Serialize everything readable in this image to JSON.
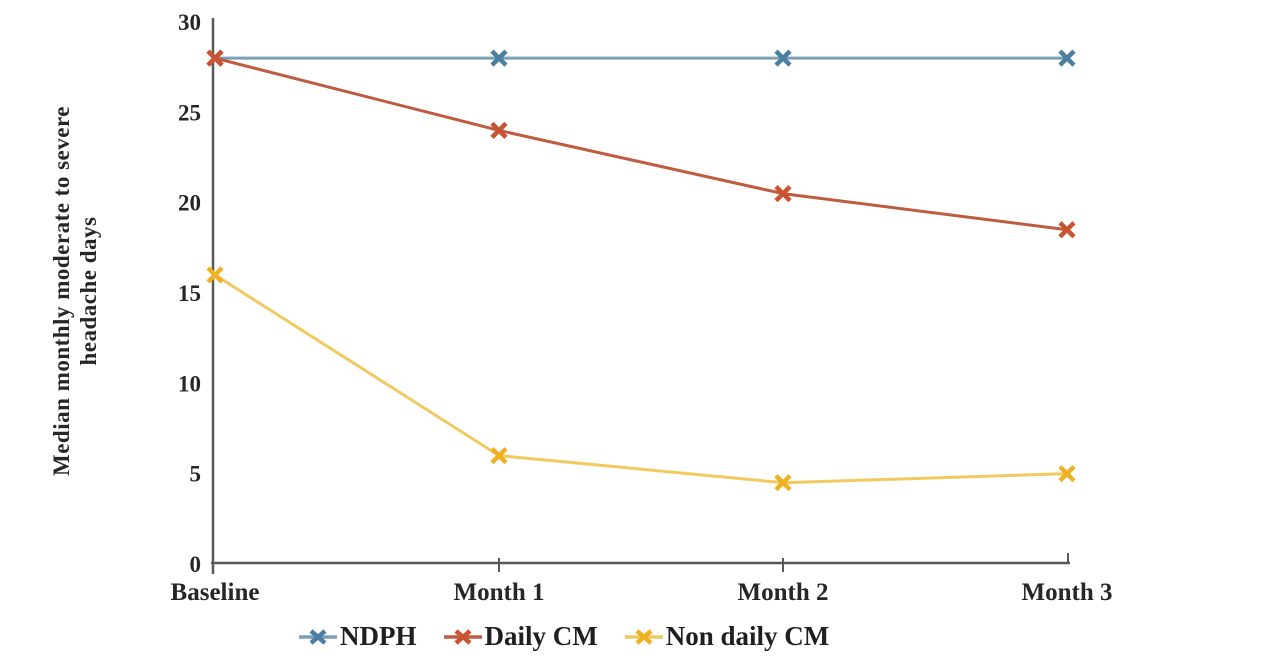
{
  "chart_data": {
    "type": "line",
    "categories": [
      "Baseline",
      "Month 1",
      "Month 2",
      "Month 3"
    ],
    "series": [
      {
        "name": "NDPH",
        "values": [
          28,
          28,
          28,
          28
        ],
        "line_color": "#7aa0b8",
        "marker_color": "#4a7fa0"
      },
      {
        "name": "Daily CM",
        "values": [
          28,
          24,
          20.5,
          18.5
        ],
        "line_color": "#bf5b40",
        "marker_color": "#ca5332"
      },
      {
        "name": "Non daily CM",
        "values": [
          16,
          6,
          4.5,
          5
        ],
        "line_color": "#f2c95f",
        "marker_color": "#eeb122"
      }
    ],
    "title": "",
    "xlabel": "",
    "ylabel_line1": "Median monthly moderate to severe",
    "ylabel_line2": "headache days",
    "ylim": [
      0,
      30
    ],
    "ytick_step": 5,
    "yticks": [
      "0",
      "5",
      "10",
      "15",
      "20",
      "25",
      "30"
    ],
    "grid": false,
    "marker": "x",
    "legend_position": "bottom",
    "axis_color": "#595959",
    "text_color": "#262626"
  }
}
